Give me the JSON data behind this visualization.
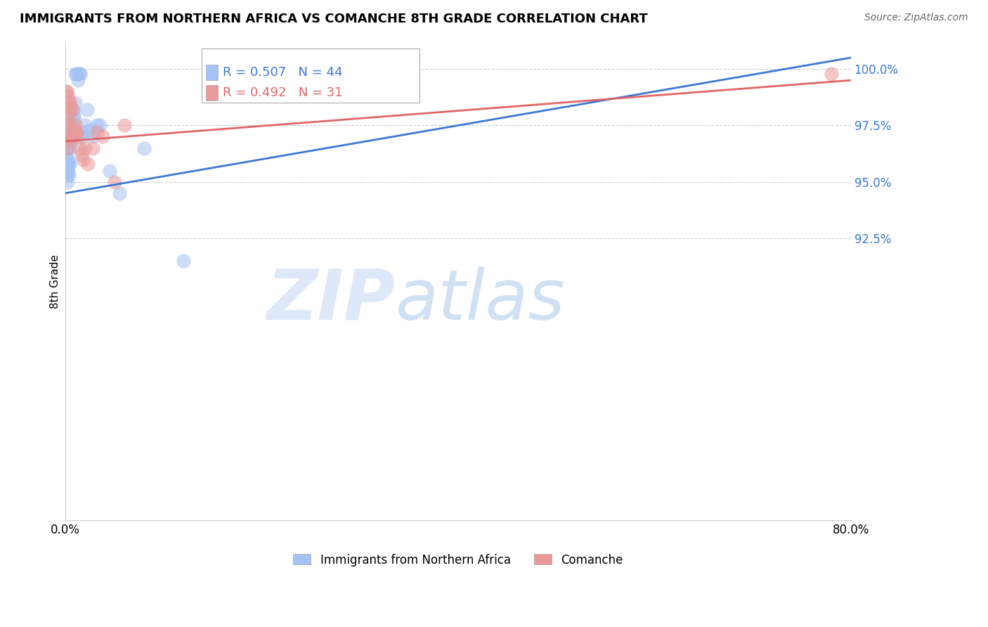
{
  "title": "IMMIGRANTS FROM NORTHERN AFRICA VS COMANCHE 8TH GRADE CORRELATION CHART",
  "source": "Source: ZipAtlas.com",
  "ylabel": "8th Grade",
  "xlim": [
    0.0,
    80.0
  ],
  "ylim": [
    80.0,
    101.2
  ],
  "blue_R": 0.507,
  "blue_N": 44,
  "pink_R": 0.492,
  "pink_N": 31,
  "blue_color": "#a4c2f4",
  "pink_color": "#ea9999",
  "blue_line_color": "#3c78d8",
  "pink_line_color": "#e06666",
  "legend_label_blue": "Immigrants from Northern Africa",
  "legend_label_pink": "Comanche",
  "ytick_vals": [
    92.5,
    95.0,
    97.5,
    100.0
  ],
  "blue_scatter_x": [
    0.05,
    0.1,
    0.1,
    0.15,
    0.15,
    0.2,
    0.2,
    0.25,
    0.25,
    0.3,
    0.3,
    0.35,
    0.35,
    0.4,
    0.4,
    0.45,
    0.5,
    0.5,
    0.55,
    0.6,
    0.65,
    0.7,
    0.8,
    0.85,
    0.9,
    1.0,
    1.0,
    1.1,
    1.2,
    1.3,
    1.5,
    1.5,
    1.7,
    1.8,
    2.0,
    2.2,
    2.5,
    2.8,
    3.2,
    3.5,
    4.5,
    5.5,
    8.0,
    12.0
  ],
  "blue_scatter_y": [
    96.3,
    96.0,
    95.8,
    95.5,
    95.3,
    95.5,
    95.0,
    96.5,
    95.8,
    96.0,
    95.5,
    95.8,
    95.3,
    96.8,
    96.5,
    95.8,
    97.2,
    97.0,
    96.8,
    97.5,
    97.2,
    97.8,
    98.2,
    98.0,
    97.8,
    98.5,
    99.8,
    99.8,
    99.8,
    99.5,
    99.8,
    99.8,
    97.0,
    97.2,
    97.5,
    98.2,
    97.3,
    97.0,
    97.5,
    97.5,
    95.5,
    94.5,
    96.5,
    91.5
  ],
  "pink_scatter_x": [
    0.1,
    0.15,
    0.2,
    0.2,
    0.25,
    0.3,
    0.35,
    0.4,
    0.5,
    0.6,
    0.7,
    0.8,
    0.9,
    1.0,
    1.1,
    1.2,
    1.4,
    1.6,
    1.8,
    2.0,
    2.3,
    2.8,
    3.2,
    3.8,
    5.0,
    6.0,
    0.05,
    0.15,
    0.25,
    0.35,
    78.0
  ],
  "pink_scatter_y": [
    96.5,
    97.0,
    97.2,
    96.8,
    97.5,
    97.8,
    98.0,
    98.3,
    98.5,
    97.0,
    98.2,
    97.0,
    97.3,
    97.5,
    97.2,
    97.0,
    96.5,
    96.2,
    96.0,
    96.5,
    95.8,
    96.5,
    97.2,
    97.0,
    95.0,
    97.5,
    99.0,
    99.0,
    98.8,
    98.5,
    99.8
  ],
  "blue_trendline_x": [
    0.0,
    80.0
  ],
  "blue_trendline_y": [
    94.5,
    100.5
  ],
  "pink_trendline_x": [
    0.0,
    80.0
  ],
  "pink_trendline_y": [
    96.8,
    99.5
  ]
}
